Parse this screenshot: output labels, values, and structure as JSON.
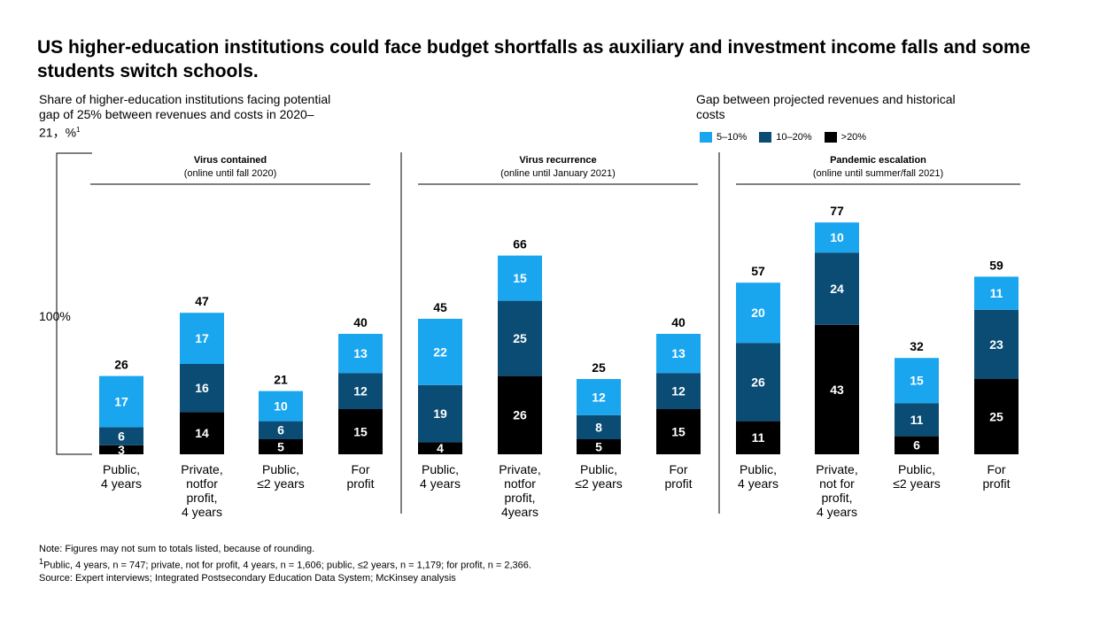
{
  "title": "US higher-education institutions could face budget shortfalls as auxiliary and investment income falls and some students switch schools.",
  "subtitle": "Share of higher-education institutions facing potential gap of 25% between revenues and costs in 2020–21，%",
  "subtitle_footnote": "1",
  "legend_title": "Gap between projected revenues and historical costs",
  "notes": {
    "note": "Note: Figures may not sum to totals listed, because of rounding.",
    "footnote_mark": "1",
    "footnote": "Public, 4 years, n = 747; private, not for profit, 4 years, n = 1,606; public,    ≤2 years, n = 1,179; for profit, n = 2,366.",
    "source": "Source: Expert interviews; Integrated Postsecondary Education Data System; McKinsey analysis"
  },
  "colors": {
    "5-10%": "#1aa6ef",
    "10-20%": "#0b4c74",
    ">20%": "#000000"
  },
  "chart_data": {
    "type": "bar",
    "stacked": true,
    "scale_label": "100%",
    "series": [
      {
        "name": "5–10%",
        "color": "#1aa6ef"
      },
      {
        "name": "10–20%",
        "color": "#0b4c74"
      },
      {
        "name": ">20%",
        "color": "#000000"
      }
    ],
    "panels": [
      {
        "title": "Virus contained",
        "subtitle": "(online until fall 2020)",
        "bars": [
          {
            "label": [
              "Public,",
              "4 years"
            ],
            "total": 26,
            "values": {
              "5–10%": 17,
              "10–20%": 6,
              ">20%": 3
            }
          },
          {
            "label": [
              "Private,",
              "notfor",
              "profit,",
              "4 years"
            ],
            "total": 47,
            "values": {
              "5–10%": 17,
              "10–20%": 16,
              ">20%": 14
            }
          },
          {
            "label": [
              "Public,",
              "≤2 years"
            ],
            "total": 21,
            "values": {
              "5–10%": 10,
              "10–20%": 6,
              ">20%": 5
            }
          },
          {
            "label": [
              "For",
              "profit"
            ],
            "total": 40,
            "values": {
              "5–10%": 13,
              "10–20%": 12,
              ">20%": 15
            }
          }
        ]
      },
      {
        "title": "Virus recurrence",
        "subtitle": "(online until January 2021)",
        "bars": [
          {
            "label": [
              "Public,",
              "4 years"
            ],
            "total": 45,
            "values": {
              "5–10%": 22,
              "10–20%": 19,
              ">20%": 4
            }
          },
          {
            "label": [
              "Private,",
              "notfor",
              "profit,",
              "4years"
            ],
            "total": 66,
            "values": {
              "5–10%": 15,
              "10–20%": 25,
              ">20%": 26
            }
          },
          {
            "label": [
              "Public,",
              "≤2 years"
            ],
            "total": 25,
            "values": {
              "5–10%": 12,
              "10–20%": 8,
              ">20%": 5
            }
          },
          {
            "label": [
              "For",
              "profit"
            ],
            "total": 40,
            "values": {
              "5–10%": 13,
              "10–20%": 12,
              ">20%": 15
            }
          }
        ]
      },
      {
        "title": "Pandemic escalation",
        "subtitle": "(online until summer/fall 2021)",
        "bars": [
          {
            "label": [
              "Public,",
              "4 years"
            ],
            "total": 57,
            "values": {
              "5–10%": 20,
              "10–20%": 26,
              ">20%": 11
            }
          },
          {
            "label": [
              "Private,",
              "not for",
              "profit,",
              "4 years"
            ],
            "total": 77,
            "values": {
              "5–10%": 10,
              "10–20%": 24,
              ">20%": 43
            }
          },
          {
            "label": [
              "Public,",
              "≤2 years"
            ],
            "total": 32,
            "values": {
              "5–10%": 15,
              "10–20%": 11,
              ">20%": 6
            }
          },
          {
            "label": [
              "For",
              "profit"
            ],
            "total": 59,
            "values": {
              "5–10%": 11,
              "10–20%": 23,
              ">20%": 25
            }
          }
        ]
      }
    ]
  }
}
